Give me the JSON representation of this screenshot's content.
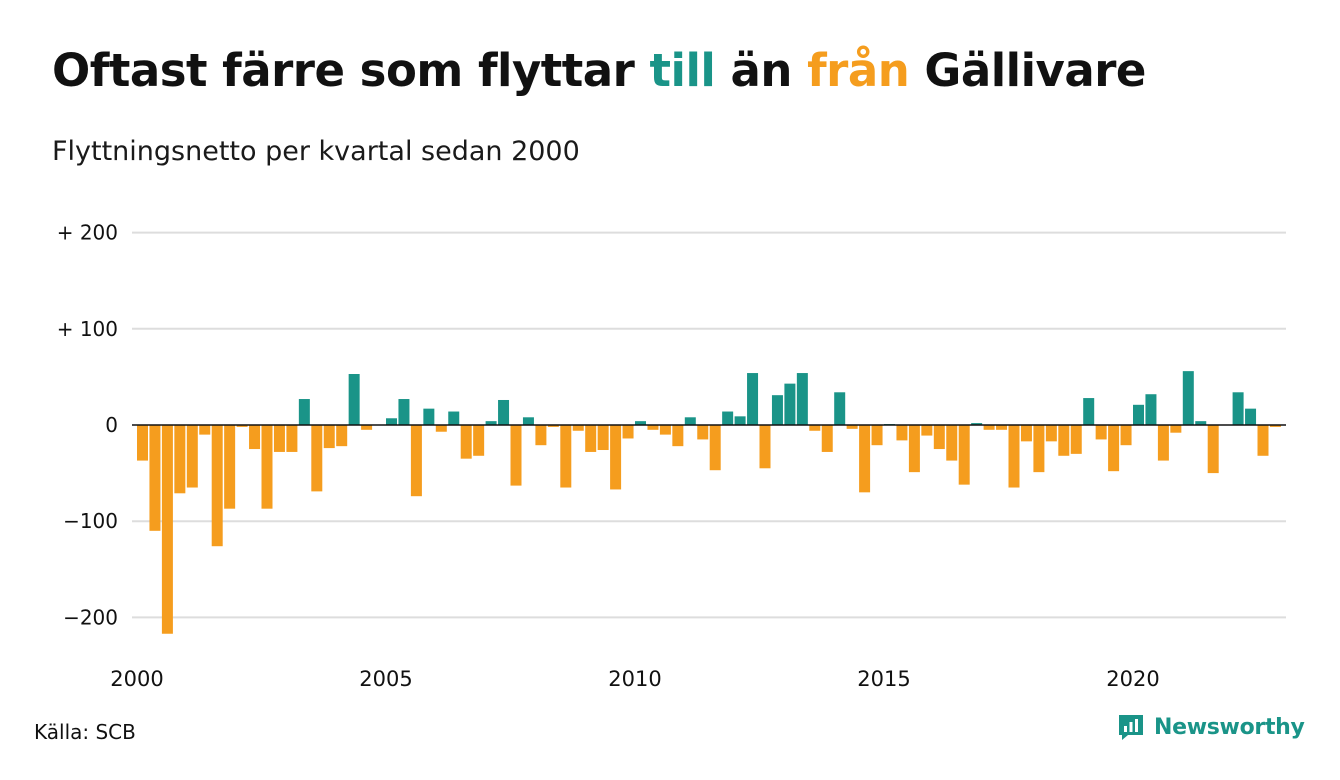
{
  "title": {
    "part1": "Oftast färre som flyttar ",
    "till": "till",
    "part2": " än ",
    "fran": "från",
    "part3": " Gällivare"
  },
  "subtitle": "Flyttningsnetto per kvartal sedan 2000",
  "source": "Källa: SCB",
  "brand": {
    "name": "Newsworthy",
    "icon": "newsworthy-logo-icon"
  },
  "colors": {
    "positive": "#1a9488",
    "negative": "#f59d1e",
    "grid": "#dddddd",
    "zero_line": "#111111"
  },
  "chart_data": {
    "type": "bar",
    "ylim": [
      -240,
      200
    ],
    "y_ticks": [
      {
        "value": 200,
        "label": "+ 200"
      },
      {
        "value": 100,
        "label": "+ 100"
      },
      {
        "value": 0,
        "label": "0"
      },
      {
        "value": -100,
        "label": "−100"
      },
      {
        "value": -200,
        "label": "−200"
      }
    ],
    "x_start": 2000,
    "x_ticks": [
      {
        "value": 2000,
        "label": "2000"
      },
      {
        "value": 2005,
        "label": "2005"
      },
      {
        "value": 2010,
        "label": "2010"
      },
      {
        "value": 2015,
        "label": "2015"
      },
      {
        "value": 2020,
        "label": "2020"
      }
    ],
    "periods_per_year": 4,
    "grid": true,
    "values": [
      -37,
      -110,
      -217,
      -71,
      -65,
      -10,
      -126,
      -87,
      -2,
      -25,
      -87,
      -28,
      -28,
      27,
      -69,
      -24,
      -22,
      53,
      -5,
      0,
      7,
      27,
      -74,
      17,
      -7,
      14,
      -35,
      -32,
      4,
      26,
      -63,
      8,
      -21,
      -2,
      -65,
      -6,
      -28,
      -26,
      -67,
      -14,
      4,
      -5,
      -10,
      -22,
      8,
      -15,
      -47,
      14,
      9,
      54,
      -45,
      31,
      43,
      54,
      -6,
      -28,
      34,
      -4,
      -70,
      -21,
      1,
      -16,
      -49,
      -11,
      -25,
      -37,
      -62,
      2,
      -5,
      -5,
      -65,
      -17,
      -49,
      -17,
      -32,
      -30,
      28,
      -15,
      -48,
      -21,
      21,
      32,
      -37,
      -8,
      56,
      4,
      -50,
      0,
      34,
      17,
      -32,
      -2
    ]
  }
}
